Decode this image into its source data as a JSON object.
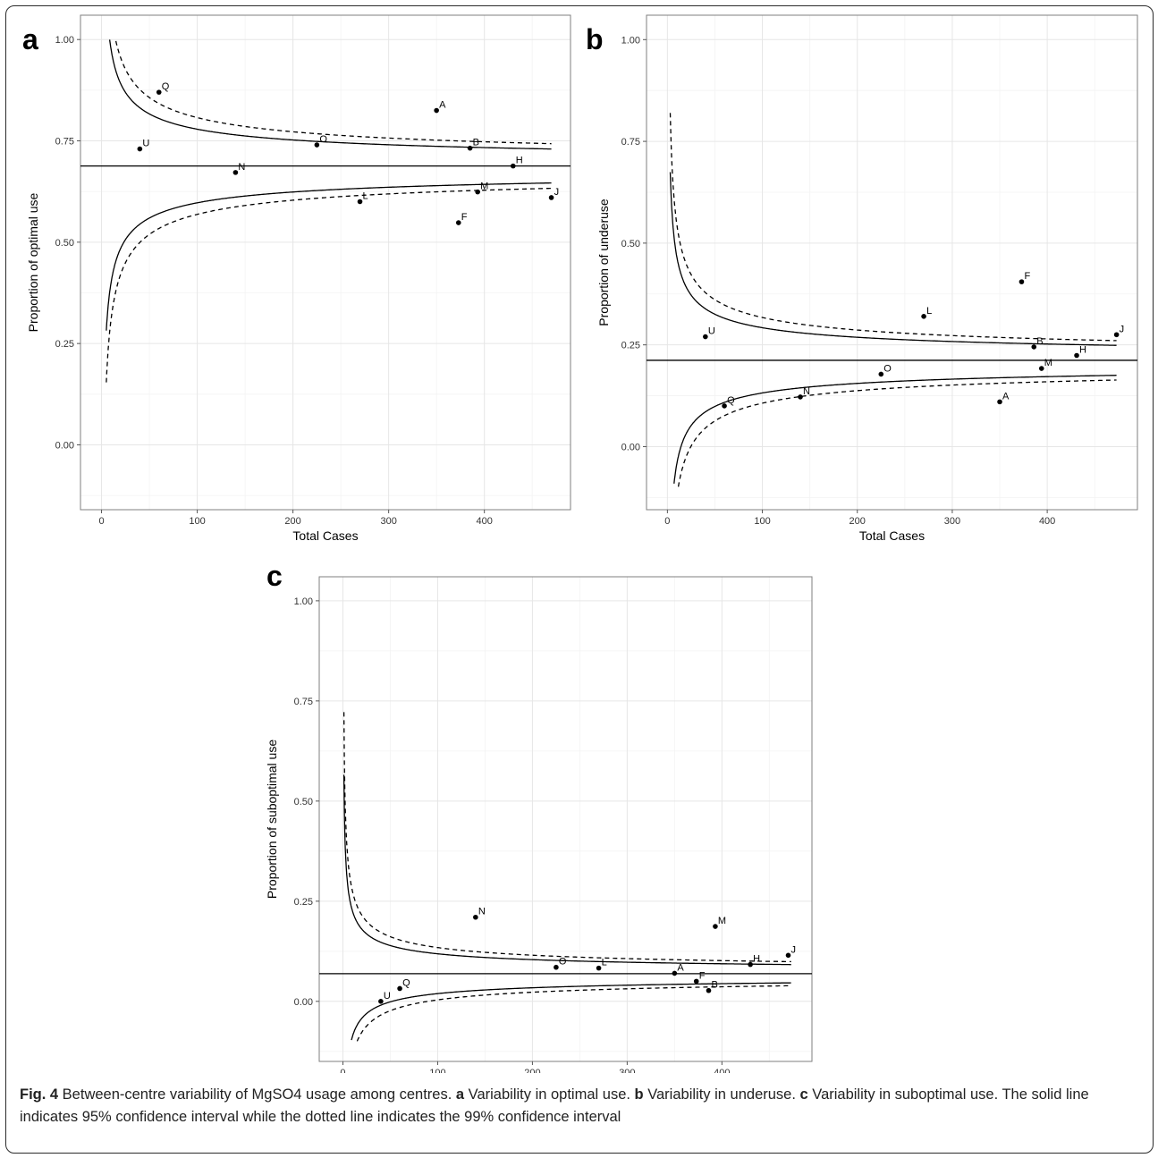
{
  "chart_data": [
    {
      "type": "scatter",
      "panel_label": "a",
      "xlabel": "Total Cases",
      "ylabel": "Proportion of optimal use",
      "xlim": [
        -22,
        490
      ],
      "ylim": [
        -0.16,
        1.06
      ],
      "x_ticks": [
        "0",
        "100",
        "200",
        "300",
        "400"
      ],
      "y_ticks": [
        "0.00",
        "0.25",
        "0.50",
        "0.75",
        "1.00"
      ],
      "x_tick_values": [
        0,
        100,
        200,
        300,
        400
      ],
      "y_tick_values": [
        0,
        0.25,
        0.5,
        0.75,
        1
      ],
      "grid": true,
      "center_line": 0.688,
      "limits": {
        "n_range": [
          5,
          470
        ],
        "z95": 1.96,
        "z99": 2.576,
        "clip": [
          -0.1,
          1.0
        ]
      },
      "points": [
        {
          "label": "Q",
          "x": 60,
          "y": 0.87
        },
        {
          "label": "U",
          "x": 40,
          "y": 0.73
        },
        {
          "label": "A",
          "x": 350,
          "y": 0.825
        },
        {
          "label": "O",
          "x": 225,
          "y": 0.74
        },
        {
          "label": "B",
          "x": 385,
          "y": 0.732
        },
        {
          "label": "N",
          "x": 140,
          "y": 0.672
        },
        {
          "label": "H",
          "x": 430,
          "y": 0.688
        },
        {
          "label": "L",
          "x": 270,
          "y": 0.6
        },
        {
          "label": "M",
          "x": 393,
          "y": 0.624
        },
        {
          "label": "J",
          "x": 470,
          "y": 0.61
        },
        {
          "label": "F",
          "x": 373,
          "y": 0.548
        }
      ]
    },
    {
      "type": "scatter",
      "panel_label": "b",
      "xlabel": "Total Cases",
      "ylabel": "Proportion of underuse",
      "xlim": [
        -22,
        495
      ],
      "ylim": [
        -0.155,
        1.06
      ],
      "x_ticks": [
        "0",
        "100",
        "200",
        "300",
        "400"
      ],
      "y_ticks": [
        "0.00",
        "0.25",
        "0.50",
        "0.75",
        "1.00"
      ],
      "x_tick_values": [
        0,
        100,
        200,
        300,
        400
      ],
      "y_tick_values": [
        0,
        0.25,
        0.5,
        0.75,
        1
      ],
      "grid": true,
      "center_line": 0.212,
      "limits": {
        "n_range": [
          3,
          473
        ],
        "z95": 1.96,
        "z99": 2.576,
        "clip": [
          -0.1,
          1.0
        ]
      },
      "points": [
        {
          "label": "F",
          "x": 373,
          "y": 0.405
        },
        {
          "label": "L",
          "x": 270,
          "y": 0.32
        },
        {
          "label": "U",
          "x": 40,
          "y": 0.27
        },
        {
          "label": "J",
          "x": 473,
          "y": 0.275
        },
        {
          "label": "B",
          "x": 386,
          "y": 0.245
        },
        {
          "label": "H",
          "x": 431,
          "y": 0.224
        },
        {
          "label": "M",
          "x": 394,
          "y": 0.192
        },
        {
          "label": "O",
          "x": 225,
          "y": 0.178
        },
        {
          "label": "N",
          "x": 140,
          "y": 0.122
        },
        {
          "label": "Q",
          "x": 60,
          "y": 0.1
        },
        {
          "label": "A",
          "x": 350,
          "y": 0.11
        }
      ]
    },
    {
      "type": "scatter",
      "panel_label": "c",
      "xlabel": "Total Cases",
      "ylabel": "Proportion of suboptimal use",
      "xlim": [
        -25,
        495
      ],
      "ylim": [
        -0.15,
        1.06
      ],
      "x_ticks": [
        "0",
        "100",
        "200",
        "300",
        "400"
      ],
      "y_ticks": [
        "0.00",
        "0.25",
        "0.50",
        "0.75",
        "1.00"
      ],
      "x_tick_values": [
        0,
        100,
        200,
        300,
        400
      ],
      "y_tick_values": [
        0,
        0.25,
        0.5,
        0.75,
        1
      ],
      "grid": true,
      "center_line": 0.069,
      "limits": {
        "n_range": [
          1,
          473
        ],
        "z95": 1.96,
        "z99": 2.576,
        "clip": [
          -0.1,
          1.0
        ]
      },
      "points": [
        {
          "label": "N",
          "x": 140,
          "y": 0.21
        },
        {
          "label": "M",
          "x": 393,
          "y": 0.187
        },
        {
          "label": "J",
          "x": 470,
          "y": 0.115
        },
        {
          "label": "H",
          "x": 430,
          "y": 0.092
        },
        {
          "label": "O",
          "x": 225,
          "y": 0.085
        },
        {
          "label": "L",
          "x": 270,
          "y": 0.083
        },
        {
          "label": "A",
          "x": 350,
          "y": 0.07
        },
        {
          "label": "F",
          "x": 373,
          "y": 0.05
        },
        {
          "label": "B",
          "x": 386,
          "y": 0.027
        },
        {
          "label": "Q",
          "x": 60,
          "y": 0.032
        },
        {
          "label": "U",
          "x": 40,
          "y": 0.0
        }
      ]
    }
  ],
  "caption": {
    "fig_label": "Fig. 4",
    "intro": " Between-centre variability of MgSO4 usage among centres. ",
    "a_label": "a",
    "a_text": " Variability in optimal use. ",
    "b_label": "b",
    "b_text": " Variability in underuse. ",
    "c_label": "c",
    "c_text": " Variability in suboptimal use. The solid line indicates 95% confidence interval while the dotted line indicates the 99% confidence interval"
  }
}
